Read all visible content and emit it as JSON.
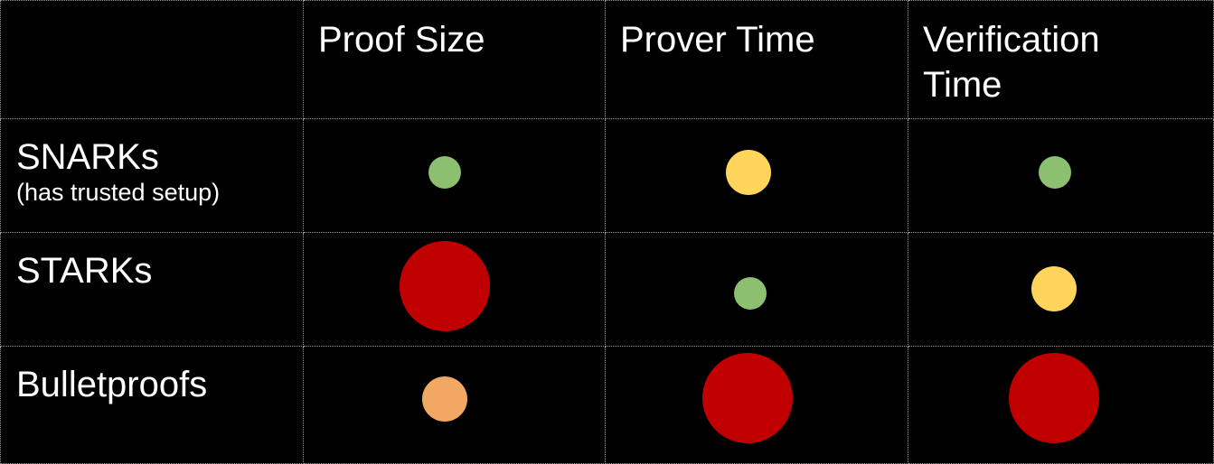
{
  "colors": {
    "background": "#000000",
    "text": "#ffffff",
    "grid_line": "#9a9a9a",
    "good": "#8cc070",
    "medium": "#ffd45a",
    "medium_bad": "#f2a862",
    "bad": "#c00000"
  },
  "table": {
    "columns": [
      "Proof Size",
      "Prover Time",
      "Verification Time"
    ],
    "rows": [
      {
        "name": "SNARKs",
        "note": "(has trusted setup)",
        "cells": [
          {
            "rating": "good",
            "color": "#8cc070",
            "size": "small"
          },
          {
            "rating": "medium",
            "color": "#ffd45a",
            "size": "medium"
          },
          {
            "rating": "good",
            "color": "#8cc070",
            "size": "small"
          }
        ]
      },
      {
        "name": "STARKs",
        "note": "",
        "cells": [
          {
            "rating": "bad",
            "color": "#c00000",
            "size": "large"
          },
          {
            "rating": "good",
            "color": "#8cc070",
            "size": "small"
          },
          {
            "rating": "medium",
            "color": "#ffd45a",
            "size": "medium"
          }
        ]
      },
      {
        "name": "Bulletproofs",
        "note": "",
        "cells": [
          {
            "rating": "medium-bad",
            "color": "#f2a862",
            "size": "medium"
          },
          {
            "rating": "bad",
            "color": "#c00000",
            "size": "large"
          },
          {
            "rating": "bad",
            "color": "#c00000",
            "size": "large"
          }
        ]
      }
    ]
  }
}
